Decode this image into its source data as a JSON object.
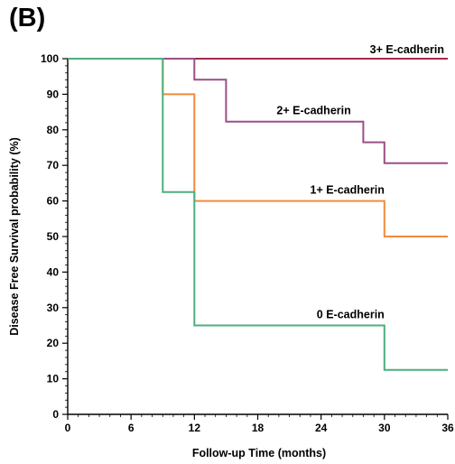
{
  "panel_label": "(B)",
  "chart_data": {
    "type": "line",
    "step": true,
    "xlabel": "Follow-up Time (months)",
    "ylabel": "Disease Free Survival probability (%)",
    "xlim": [
      0,
      36
    ],
    "ylim": [
      0,
      100
    ],
    "xticks": [
      0,
      6,
      12,
      18,
      24,
      30,
      36
    ],
    "yticks": [
      0,
      10,
      20,
      30,
      40,
      50,
      60,
      70,
      80,
      90,
      100
    ],
    "grid": false,
    "legend": "inline labels",
    "series": [
      {
        "name": "3+ E-cadherin",
        "color": "#a52a4a",
        "x": [
          0,
          36
        ],
        "y": [
          100,
          100
        ],
        "label_at": [
          36,
          100
        ]
      },
      {
        "name": "2+ E-cadherin",
        "color": "#9b4f86",
        "x": [
          0,
          12,
          12,
          15,
          15,
          28,
          28,
          30,
          30,
          36
        ],
        "y": [
          100,
          100,
          94.1,
          94.1,
          82.3,
          82.3,
          76.5,
          76.5,
          70.6,
          70.6
        ],
        "label_at": [
          27,
          82.3
        ]
      },
      {
        "name": "1+ E-cadherin",
        "color": "#f28a3c",
        "x": [
          0,
          9,
          9,
          12,
          12,
          30,
          30,
          36
        ],
        "y": [
          100,
          100,
          90,
          90,
          60,
          60,
          50,
          50
        ],
        "label_at": [
          30,
          60
        ]
      },
      {
        "name": "0 E-cadherin",
        "color": "#4caf7d",
        "x": [
          0,
          9,
          9,
          12,
          12,
          30,
          30,
          36
        ],
        "y": [
          100,
          100,
          62.5,
          62.5,
          25,
          25,
          12.5,
          12.5
        ],
        "label_at": [
          30,
          25
        ]
      }
    ]
  }
}
